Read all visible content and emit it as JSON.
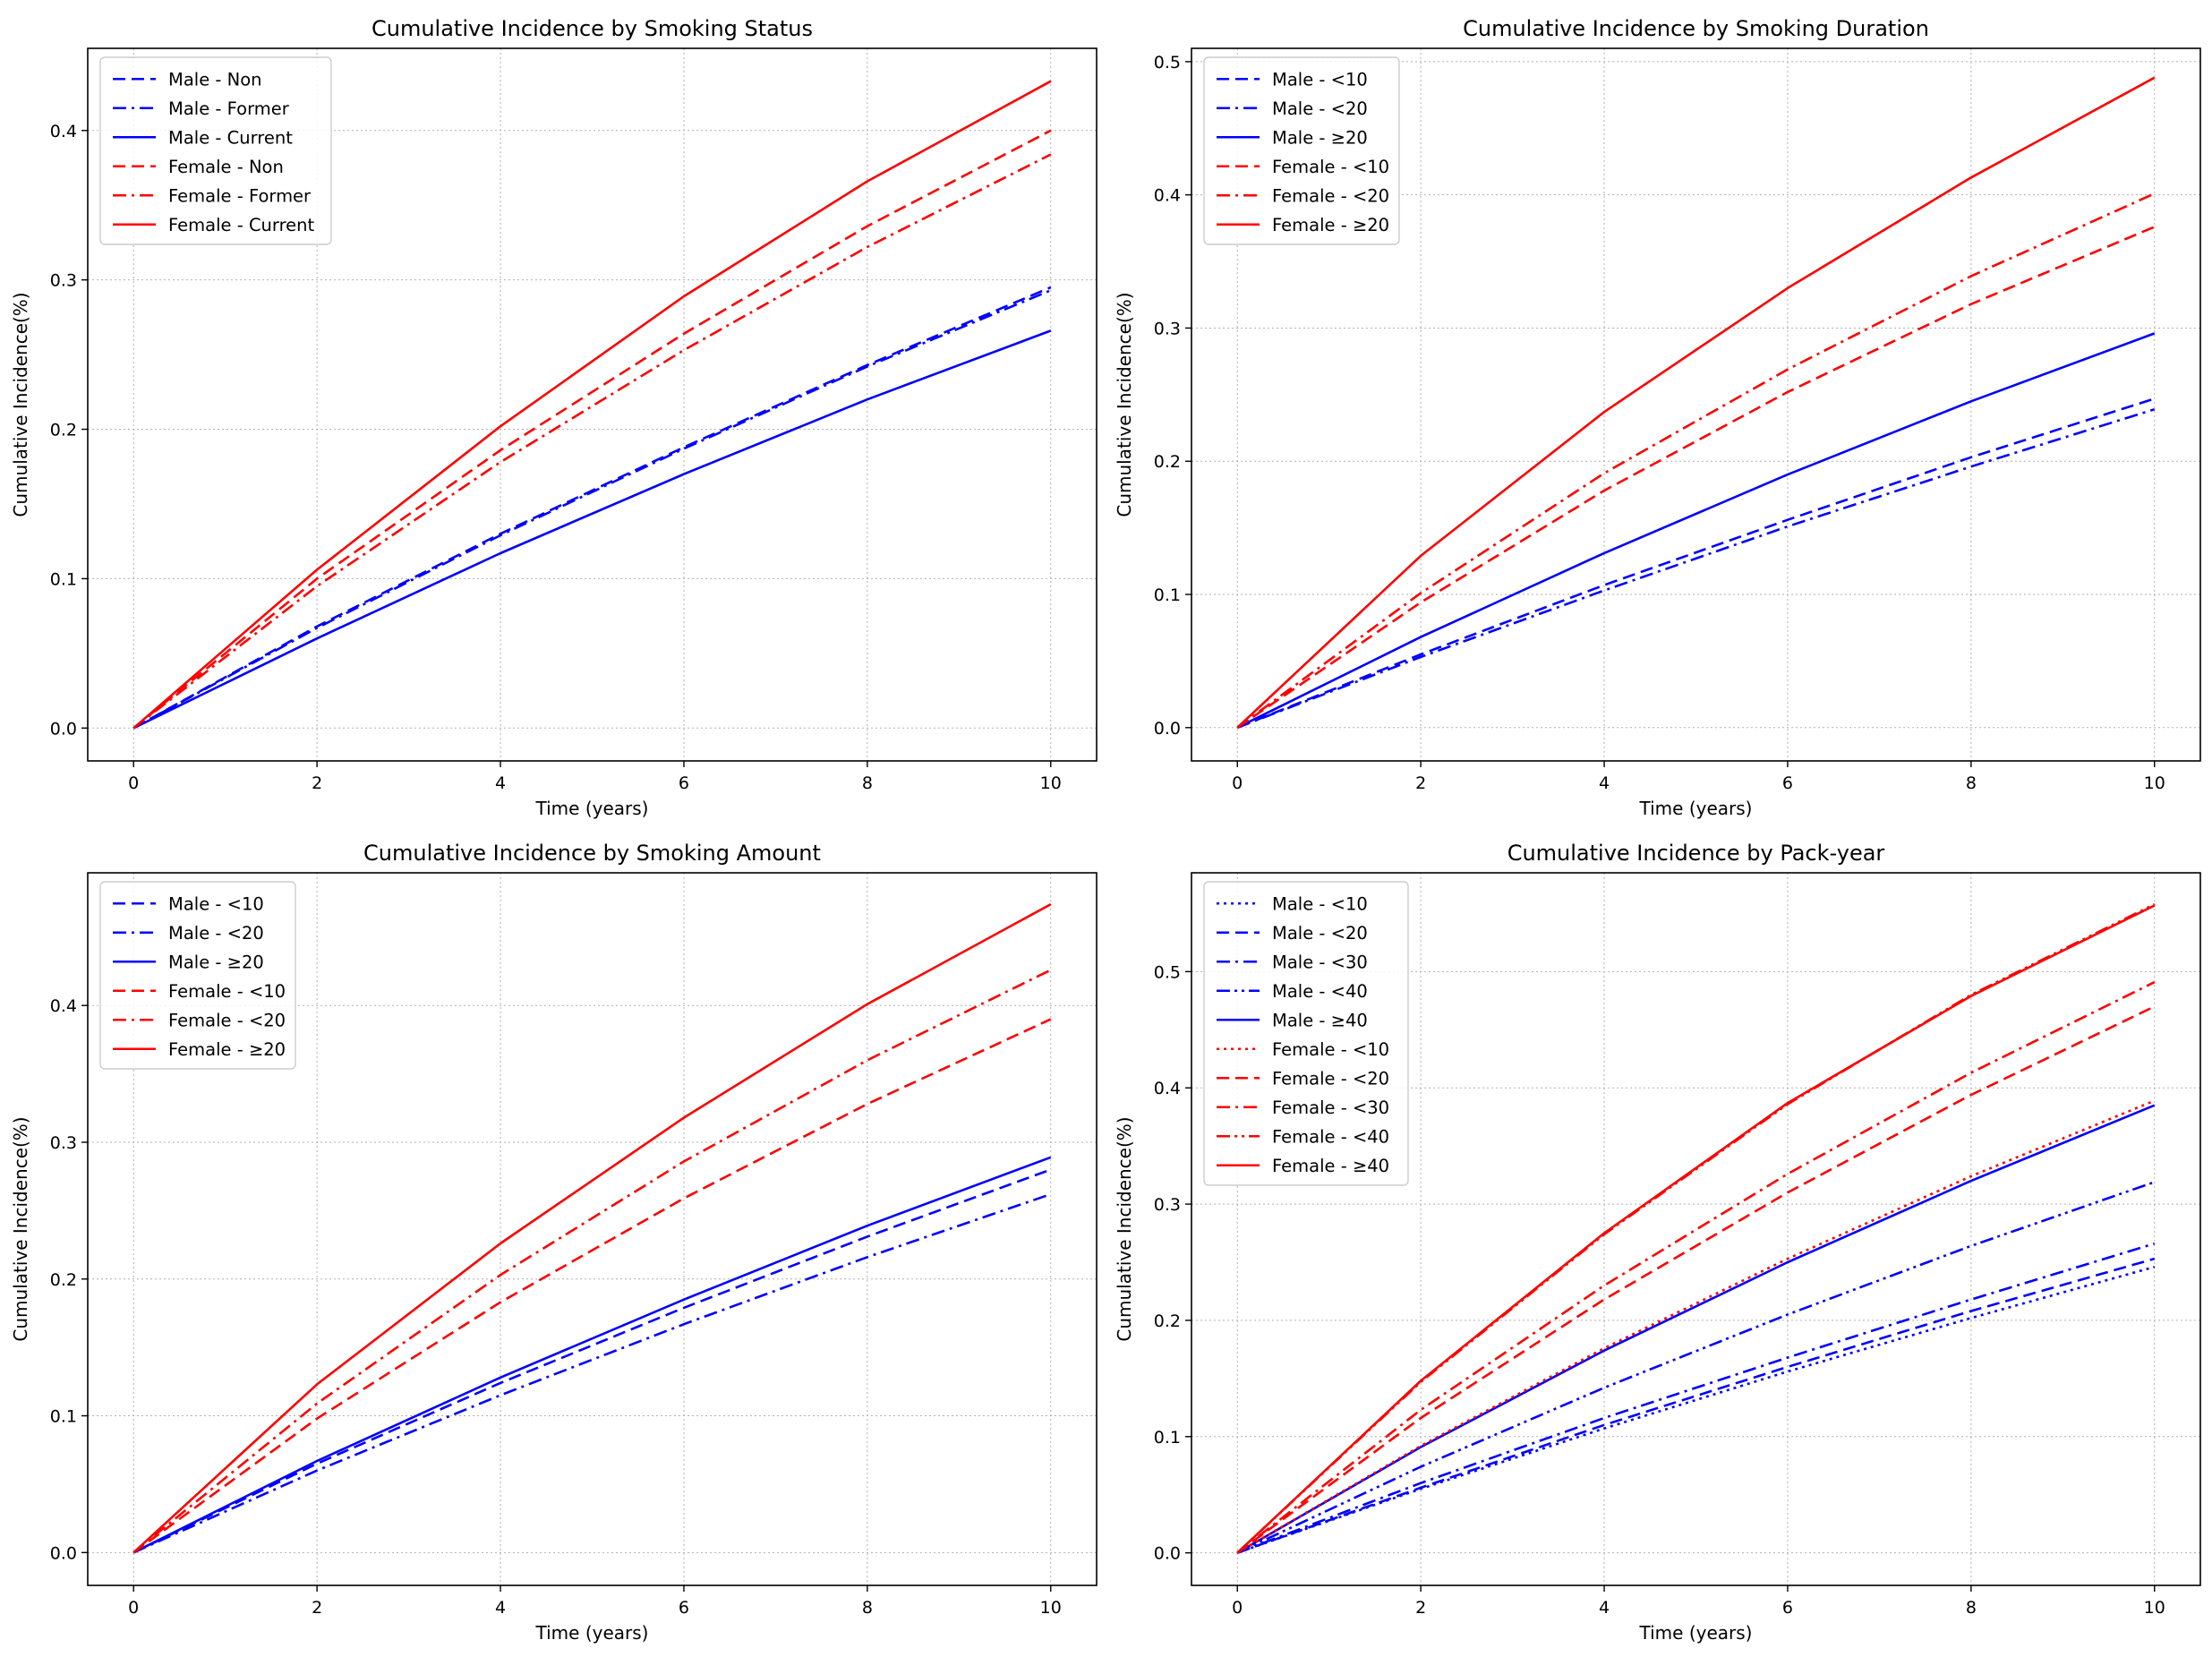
{
  "figure": {
    "background": "#ffffff"
  },
  "colors": {
    "male": "#0000ff",
    "female": "#ff0000",
    "grid": "#b0b0b0",
    "axis": "#000000"
  },
  "chart_data": [
    {
      "id": "status",
      "type": "line",
      "title": "Cumulative Incidence by Smoking Status",
      "xlabel": "Time (years)",
      "ylabel": "Cumulative Incidence(%)",
      "xlim": [
        -0.5,
        10.5
      ],
      "ylim": [
        -0.022,
        0.455
      ],
      "xticks": [
        0,
        2,
        4,
        6,
        8,
        10
      ],
      "yticks": [
        0.0,
        0.1,
        0.2,
        0.3,
        0.4
      ],
      "ytick_labels": [
        "0.0",
        "0.1",
        "0.2",
        "0.3",
        "0.4"
      ],
      "legend": "upper-left",
      "series": [
        {
          "name": "Male - Non",
          "color": "#0000ff",
          "style": "dashed",
          "x": [
            0,
            2,
            4,
            6,
            8,
            10
          ],
          "y": [
            0,
            0.068,
            0.13,
            0.188,
            0.243,
            0.295
          ]
        },
        {
          "name": "Male - Former",
          "color": "#0000ff",
          "style": "dashdot",
          "x": [
            0,
            2,
            4,
            6,
            8,
            10
          ],
          "y": [
            0,
            0.067,
            0.129,
            0.187,
            0.242,
            0.293
          ]
        },
        {
          "name": "Male - Current",
          "color": "#0000ff",
          "style": "solid",
          "x": [
            0,
            2,
            4,
            6,
            8,
            10
          ],
          "y": [
            0,
            0.06,
            0.117,
            0.17,
            0.22,
            0.266
          ]
        },
        {
          "name": "Female - Non",
          "color": "#ff0000",
          "style": "dashed",
          "x": [
            0,
            2,
            4,
            6,
            8,
            10
          ],
          "y": [
            0,
            0.1,
            0.186,
            0.264,
            0.336,
            0.4
          ]
        },
        {
          "name": "Female - Former",
          "color": "#ff0000",
          "style": "dashdot",
          "x": [
            0,
            2,
            4,
            6,
            8,
            10
          ],
          "y": [
            0,
            0.095,
            0.178,
            0.253,
            0.322,
            0.384
          ]
        },
        {
          "name": "Female - Current",
          "color": "#ff0000",
          "style": "solid",
          "x": [
            0,
            2,
            4,
            6,
            8,
            10
          ],
          "y": [
            0,
            0.106,
            0.202,
            0.289,
            0.366,
            0.433
          ]
        }
      ]
    },
    {
      "id": "duration",
      "type": "line",
      "title": "Cumulative Incidence by Smoking Duration",
      "xlabel": "Time (years)",
      "ylabel": "Cumulative Incidence(%)",
      "xlim": [
        -0.5,
        10.5
      ],
      "ylim": [
        -0.025,
        0.51
      ],
      "xticks": [
        0,
        2,
        4,
        6,
        8,
        10
      ],
      "yticks": [
        0.0,
        0.1,
        0.2,
        0.3,
        0.4,
        0.5
      ],
      "ytick_labels": [
        "0.0",
        "0.1",
        "0.2",
        "0.3",
        "0.4",
        "0.5"
      ],
      "legend": "upper-left",
      "series": [
        {
          "name": "Male - <10",
          "color": "#0000ff",
          "style": "dashed",
          "x": [
            0,
            2,
            4,
            6,
            8,
            10
          ],
          "y": [
            0,
            0.055,
            0.107,
            0.156,
            0.203,
            0.247
          ]
        },
        {
          "name": "Male - <20",
          "color": "#0000ff",
          "style": "dashdot",
          "x": [
            0,
            2,
            4,
            6,
            8,
            10
          ],
          "y": [
            0,
            0.053,
            0.103,
            0.151,
            0.196,
            0.239
          ]
        },
        {
          "name": "Male - ≥20",
          "color": "#0000ff",
          "style": "solid",
          "x": [
            0,
            2,
            4,
            6,
            8,
            10
          ],
          "y": [
            0,
            0.068,
            0.131,
            0.19,
            0.245,
            0.296
          ]
        },
        {
          "name": "Female - <10",
          "color": "#ff0000",
          "style": "dashed",
          "x": [
            0,
            2,
            4,
            6,
            8,
            10
          ],
          "y": [
            0,
            0.094,
            0.178,
            0.252,
            0.318,
            0.376
          ]
        },
        {
          "name": "Female - <20",
          "color": "#ff0000",
          "style": "dashdot",
          "x": [
            0,
            2,
            4,
            6,
            8,
            10
          ],
          "y": [
            0,
            0.101,
            0.191,
            0.269,
            0.339,
            0.401
          ]
        },
        {
          "name": "Female - ≥20",
          "color": "#ff0000",
          "style": "solid",
          "x": [
            0,
            2,
            4,
            6,
            8,
            10
          ],
          "y": [
            0,
            0.129,
            0.237,
            0.33,
            0.413,
            0.488
          ]
        }
      ]
    },
    {
      "id": "amount",
      "type": "line",
      "title": "Cumulative Incidence by Smoking Amount",
      "xlabel": "Time (years)",
      "ylabel": "Cumulative Incidence(%)",
      "xlim": [
        -0.5,
        10.5
      ],
      "ylim": [
        -0.024,
        0.497
      ],
      "xticks": [
        0,
        2,
        4,
        6,
        8,
        10
      ],
      "yticks": [
        0.0,
        0.1,
        0.2,
        0.3,
        0.4
      ],
      "ytick_labels": [
        "0.0",
        "0.1",
        "0.2",
        "0.3",
        "0.4"
      ],
      "legend": "upper-left",
      "series": [
        {
          "name": "Male - <10",
          "color": "#0000ff",
          "style": "dashed",
          "x": [
            0,
            2,
            4,
            6,
            8,
            10
          ],
          "y": [
            0,
            0.065,
            0.124,
            0.179,
            0.231,
            0.28
          ]
        },
        {
          "name": "Male - <20",
          "color": "#0000ff",
          "style": "dashdot",
          "x": [
            0,
            2,
            4,
            6,
            8,
            10
          ],
          "y": [
            0,
            0.06,
            0.115,
            0.167,
            0.216,
            0.262
          ]
        },
        {
          "name": "Male - ≥20",
          "color": "#0000ff",
          "style": "solid",
          "x": [
            0,
            2,
            4,
            6,
            8,
            10
          ],
          "y": [
            0,
            0.067,
            0.128,
            0.185,
            0.239,
            0.289
          ]
        },
        {
          "name": "Female - <10",
          "color": "#ff0000",
          "style": "dashed",
          "x": [
            0,
            2,
            4,
            6,
            8,
            10
          ],
          "y": [
            0,
            0.098,
            0.183,
            0.259,
            0.328,
            0.39
          ]
        },
        {
          "name": "Female - <20",
          "color": "#ff0000",
          "style": "dashdot",
          "x": [
            0,
            2,
            4,
            6,
            8,
            10
          ],
          "y": [
            0,
            0.109,
            0.203,
            0.286,
            0.36,
            0.426
          ]
        },
        {
          "name": "Female - ≥20",
          "color": "#ff0000",
          "style": "solid",
          "x": [
            0,
            2,
            4,
            6,
            8,
            10
          ],
          "y": [
            0,
            0.123,
            0.226,
            0.318,
            0.401,
            0.474
          ]
        }
      ]
    },
    {
      "id": "packyear",
      "type": "line",
      "title": "Cumulative Incidence by Pack-year",
      "xlabel": "Time (years)",
      "ylabel": "Cumulative Incidence(%)",
      "xlim": [
        -0.5,
        10.5
      ],
      "ylim": [
        -0.028,
        0.585
      ],
      "xticks": [
        0,
        2,
        4,
        6,
        8,
        10
      ],
      "yticks": [
        0.0,
        0.1,
        0.2,
        0.3,
        0.4,
        0.5
      ],
      "ytick_labels": [
        "0.0",
        "0.1",
        "0.2",
        "0.3",
        "0.4",
        "0.5"
      ],
      "legend": "upper-left",
      "series": [
        {
          "name": "Male - <10",
          "color": "#0000ff",
          "style": "dotted",
          "x": [
            0,
            2,
            4,
            6,
            8,
            10
          ],
          "y": [
            0,
            0.055,
            0.107,
            0.156,
            0.202,
            0.246
          ]
        },
        {
          "name": "Male - <20",
          "color": "#0000ff",
          "style": "dashed",
          "x": [
            0,
            2,
            4,
            6,
            8,
            10
          ],
          "y": [
            0,
            0.056,
            0.11,
            0.16,
            0.208,
            0.253
          ]
        },
        {
          "name": "Male - <30",
          "color": "#0000ff",
          "style": "dashdot",
          "x": [
            0,
            2,
            4,
            6,
            8,
            10
          ],
          "y": [
            0,
            0.06,
            0.116,
            0.168,
            0.218,
            0.266
          ]
        },
        {
          "name": "Male - <40",
          "color": "#0000ff",
          "style": "dashdotdot",
          "x": [
            0,
            2,
            4,
            6,
            8,
            10
          ],
          "y": [
            0,
            0.074,
            0.142,
            0.205,
            0.264,
            0.319
          ]
        },
        {
          "name": "Male - ≥40",
          "color": "#0000ff",
          "style": "solid",
          "x": [
            0,
            2,
            4,
            6,
            8,
            10
          ],
          "y": [
            0,
            0.091,
            0.174,
            0.25,
            0.32,
            0.385
          ]
        },
        {
          "name": "Female - <10",
          "color": "#ff0000",
          "style": "dotted",
          "x": [
            0,
            2,
            4,
            6,
            8,
            10
          ],
          "y": [
            0,
            0.092,
            0.176,
            0.253,
            0.324,
            0.389
          ]
        },
        {
          "name": "Female - <20",
          "color": "#ff0000",
          "style": "dashed",
          "x": [
            0,
            2,
            4,
            6,
            8,
            10
          ],
          "y": [
            0,
            0.116,
            0.218,
            0.31,
            0.394,
            0.47
          ]
        },
        {
          "name": "Female - <30",
          "color": "#ff0000",
          "style": "dashdot",
          "x": [
            0,
            2,
            4,
            6,
            8,
            10
          ],
          "y": [
            0,
            0.123,
            0.23,
            0.326,
            0.413,
            0.491
          ]
        },
        {
          "name": "Female - <40",
          "color": "#ff0000",
          "style": "dashdotdot",
          "x": [
            0,
            2,
            4,
            6,
            8,
            10
          ],
          "y": [
            0,
            0.147,
            0.274,
            0.386,
            0.48,
            0.558
          ]
        },
        {
          "name": "Female - ≥40",
          "color": "#ff0000",
          "style": "solid",
          "x": [
            0,
            2,
            4,
            6,
            8,
            10
          ],
          "y": [
            0,
            0.148,
            0.275,
            0.387,
            0.479,
            0.557
          ]
        }
      ]
    }
  ]
}
